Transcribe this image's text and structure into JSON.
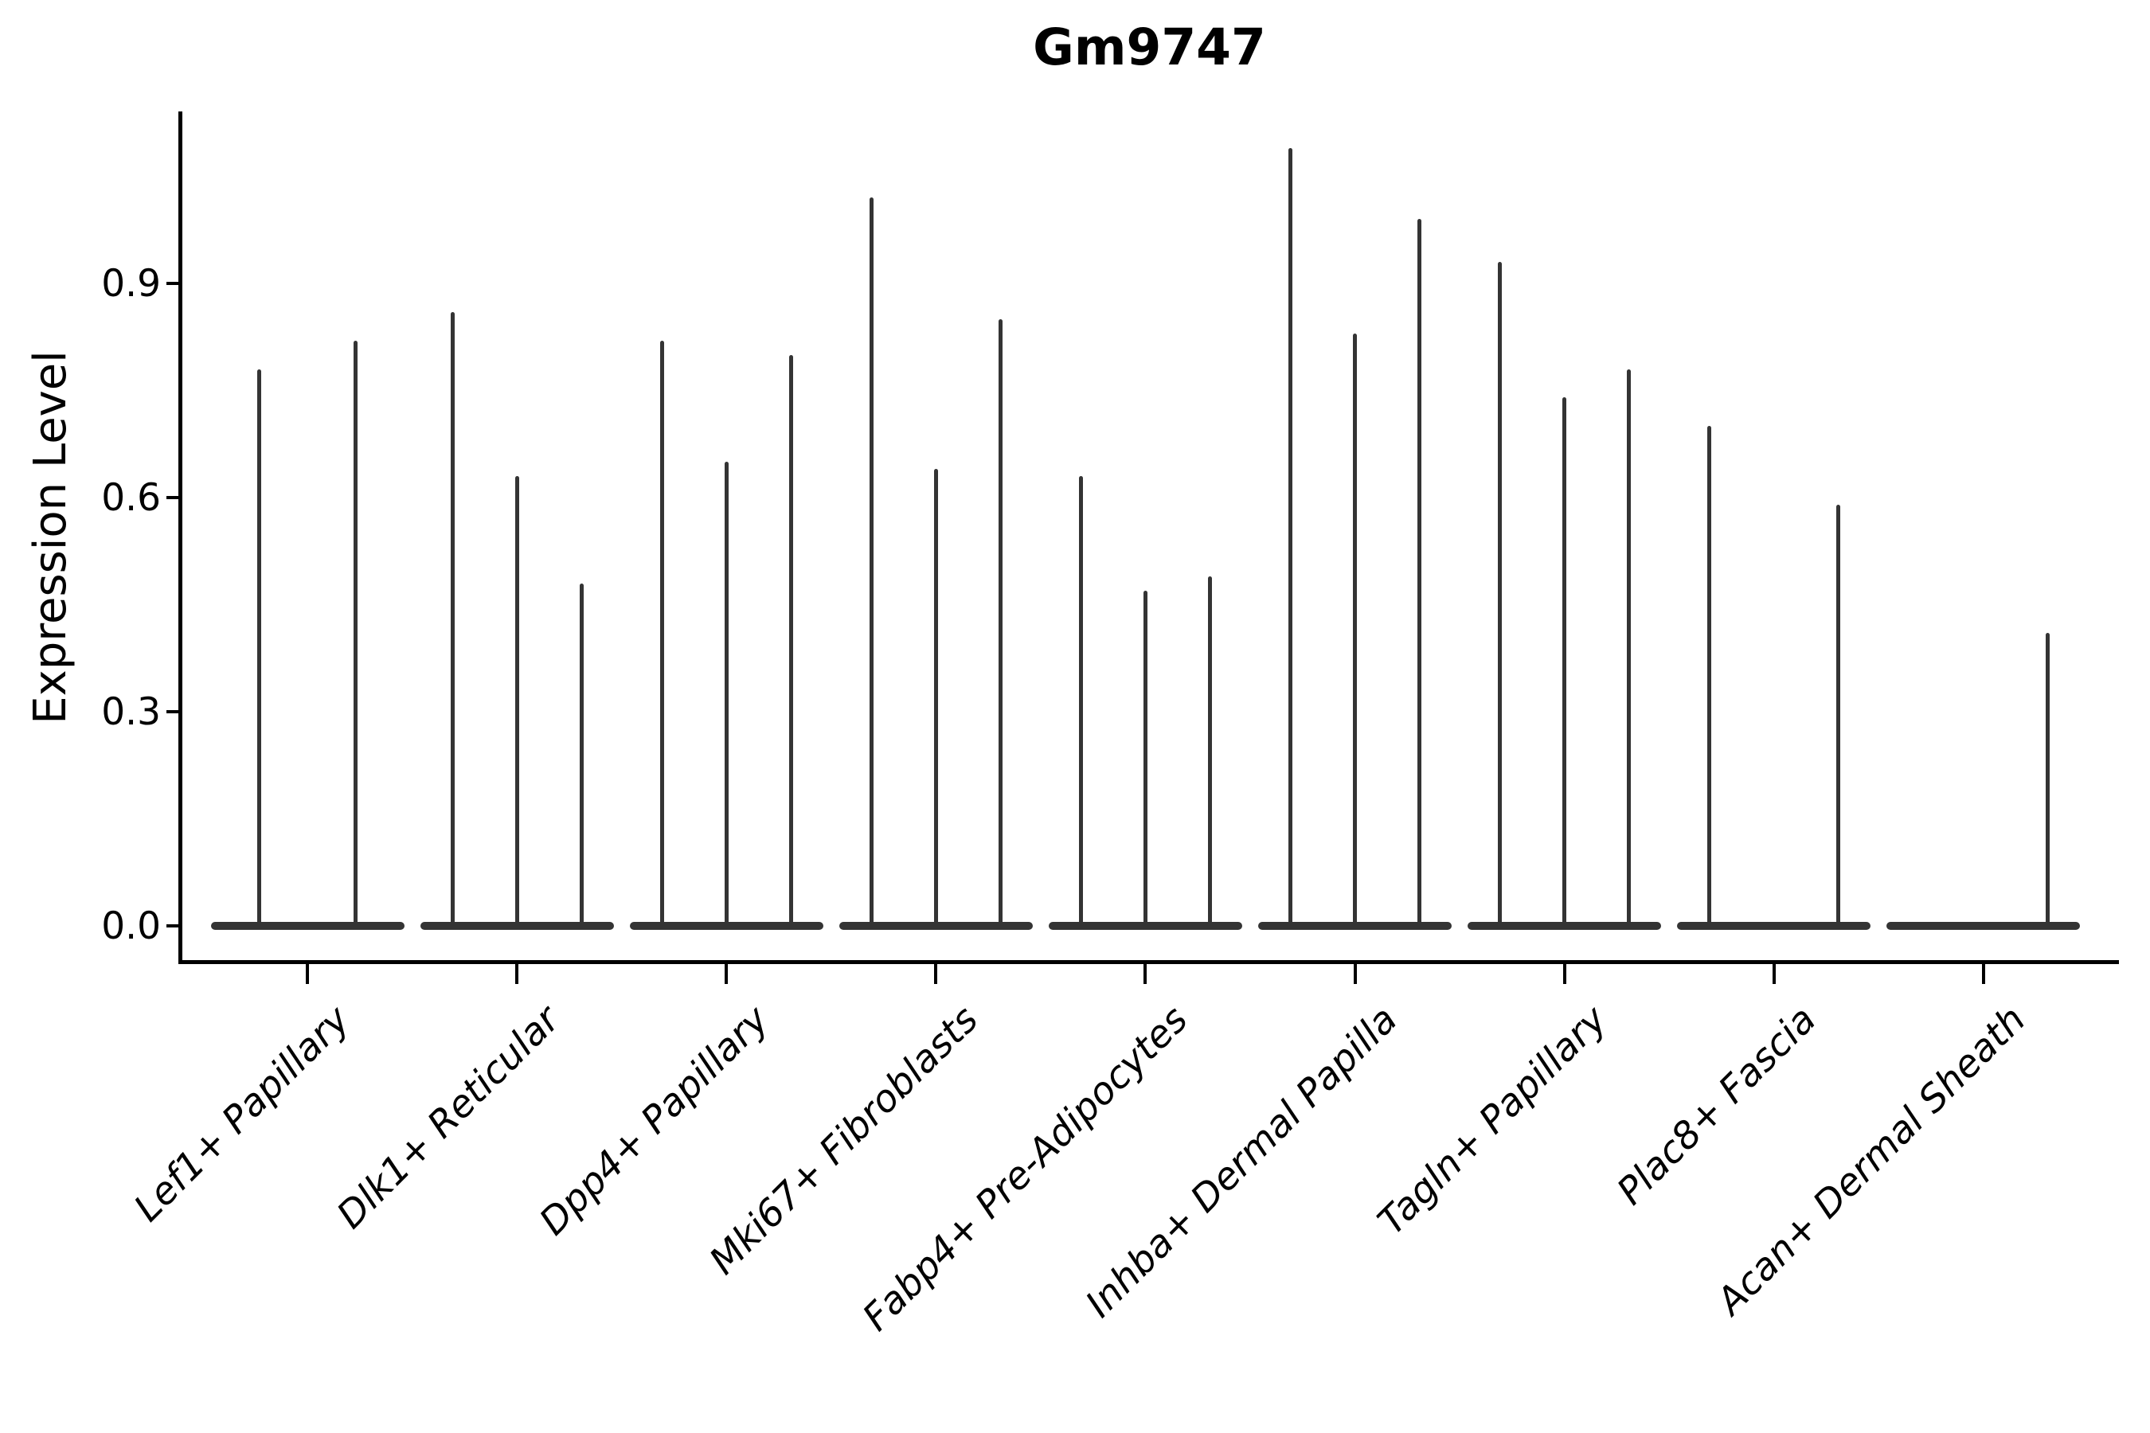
{
  "window_title": "Gm9747",
  "colors": {
    "background": "#ffffff",
    "violin": "#343434",
    "axis": "#000000",
    "text": "#000000"
  },
  "chart_data": {
    "type": "violin",
    "title": "Gm9747",
    "xlabel": "",
    "ylabel": "Expression Level",
    "ytick_labels": [
      "0.0",
      "0.3",
      "0.6",
      "0.9"
    ],
    "ytick_values": [
      0.0,
      0.3,
      0.6,
      0.9
    ],
    "ylim": [
      -0.05,
      1.14
    ],
    "grid": false,
    "legend_position": "none",
    "x_label_rotation_deg": 45,
    "x_label_style": "italic",
    "note": "Sparse single-cell expression violins: each violin is a wide flat base at 0 (most cells zero) with a thin spike rising to the violin's maximum expression value. Zero entries in violin_max_values are fully flat violins.",
    "categories": [
      "Lef1+ Papillary",
      "Dlk1+ Reticular",
      "Dpp4+ Papillary",
      "Mki67+ Fibroblasts",
      "Fabp4+ Pre-Adipocytes",
      "Inhba+ Dermal Papilla",
      "Tagln+ Papillary",
      "Plac8+ Fascia",
      "Acan+ Dermal Sheath"
    ],
    "groups": [
      {
        "category": "Lef1+ Papillary",
        "violin_max_values": [
          0.78,
          0.82
        ]
      },
      {
        "category": "Dlk1+ Reticular",
        "violin_max_values": [
          0.86,
          0.63,
          0.48
        ]
      },
      {
        "category": "Dpp4+ Papillary",
        "violin_max_values": [
          0.82,
          0.65,
          0.8
        ]
      },
      {
        "category": "Mki67+ Fibroblasts",
        "violin_max_values": [
          1.02,
          0.64,
          0.85
        ]
      },
      {
        "category": "Fabp4+ Pre-Adipocytes",
        "violin_max_values": [
          0.63,
          0.47,
          0.49
        ]
      },
      {
        "category": "Inhba+ Dermal Papilla",
        "violin_max_values": [
          1.09,
          0.83,
          0.99
        ]
      },
      {
        "category": "Tagln+ Papillary",
        "violin_max_values": [
          0.93,
          0.74,
          0.78
        ]
      },
      {
        "category": "Plac8+ Fascia",
        "violin_max_values": [
          0.7,
          0.0,
          0.59
        ]
      },
      {
        "category": "Acan+ Dermal Sheath",
        "violin_max_values": [
          0.0,
          0.0,
          0.41
        ]
      }
    ]
  }
}
